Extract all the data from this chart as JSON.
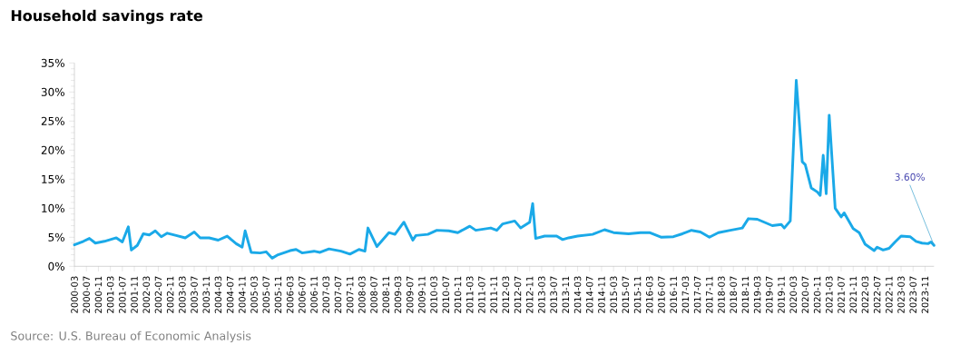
{
  "chart_data": {
    "type": "line",
    "title": "Household savings rate",
    "x": [
      "2000-03",
      "2000-06",
      "2000-08",
      "2000-10",
      "2001-01",
      "2001-05",
      "2001-07",
      "2001-09",
      "2001-10",
      "2001-12",
      "2002-02",
      "2002-04",
      "2002-06",
      "2002-08",
      "2002-10",
      "2003-01",
      "2003-04",
      "2003-07",
      "2003-09",
      "2003-12",
      "2004-03",
      "2004-06",
      "2004-09",
      "2004-11",
      "2004-12",
      "2005-02",
      "2005-05",
      "2005-07",
      "2005-09",
      "2005-11",
      "2006-03",
      "2006-05",
      "2006-07",
      "2006-11",
      "2007-01",
      "2007-04",
      "2007-08",
      "2007-11",
      "2008-02",
      "2008-04",
      "2008-05",
      "2008-08",
      "2008-12",
      "2009-02",
      "2009-05",
      "2009-08",
      "2009-09",
      "2010-01",
      "2010-04",
      "2010-08",
      "2010-11",
      "2011-03",
      "2011-05",
      "2011-10",
      "2011-12",
      "2012-02",
      "2012-06",
      "2012-08",
      "2012-11",
      "2012-12",
      "2013-01",
      "2013-04",
      "2013-08",
      "2013-10",
      "2013-12",
      "2014-03",
      "2014-08",
      "2014-12",
      "2015-03",
      "2015-08",
      "2015-12",
      "2016-03",
      "2016-07",
      "2016-11",
      "2017-02",
      "2017-05",
      "2017-08",
      "2017-11",
      "2018-02",
      "2018-06",
      "2018-10",
      "2018-12",
      "2019-03",
      "2019-08",
      "2019-11",
      "2019-12",
      "2020-02",
      "2020-04",
      "2020-06",
      "2020-07",
      "2020-09",
      "2020-11",
      "2020-12",
      "2021-01",
      "2021-02",
      "2021-03",
      "2021-05",
      "2021-07",
      "2021-08",
      "2021-11",
      "2022-01",
      "2022-03",
      "2022-06",
      "2022-07",
      "2022-09",
      "2022-11",
      "2023-01",
      "2023-03",
      "2023-06",
      "2023-08",
      "2023-10",
      "2023-12",
      "2024-01",
      "2024-02"
    ],
    "series": [
      {
        "color": "#1aa9e8",
        "values": [
          3.7,
          4.3,
          4.8,
          4.0,
          4.3,
          4.9,
          4.2,
          6.8,
          2.8,
          3.6,
          5.6,
          5.4,
          6.1,
          5.1,
          5.7,
          5.3,
          4.9,
          5.9,
          4.9,
          4.9,
          4.5,
          5.2,
          3.9,
          3.3,
          6.1,
          2.4,
          2.3,
          2.5,
          1.4,
          2.0,
          2.7,
          2.9,
          2.3,
          2.6,
          2.4,
          3.0,
          2.6,
          2.1,
          2.9,
          2.6,
          6.6,
          3.4,
          5.8,
          5.5,
          7.6,
          4.5,
          5.3,
          5.5,
          6.2,
          6.1,
          5.8,
          6.9,
          6.2,
          6.6,
          6.2,
          7.3,
          7.8,
          6.6,
          7.6,
          10.8,
          4.8,
          5.2,
          5.2,
          4.6,
          4.9,
          5.2,
          5.5,
          6.3,
          5.8,
          5.6,
          5.8,
          5.8,
          5.0,
          5.1,
          5.6,
          6.2,
          5.9,
          5.0,
          5.8,
          6.2,
          6.6,
          8.2,
          8.1,
          7.0,
          7.2,
          6.6,
          7.8,
          32.0,
          18.0,
          17.5,
          13.5,
          12.8,
          12.2,
          19.1,
          12.5,
          26.0,
          10.0,
          8.5,
          9.2,
          6.5,
          5.8,
          3.8,
          2.7,
          3.3,
          2.8,
          3.1,
          4.2,
          5.2,
          5.1,
          4.3,
          4.0,
          3.9,
          4.2,
          3.6
        ]
      }
    ],
    "xlim": [
      "2000-03",
      "2024-02"
    ],
    "xticks": [
      "2000-03",
      "2000-07",
      "2000-11",
      "2001-03",
      "2001-07",
      "2001-11",
      "2002-03",
      "2002-07",
      "2002-11",
      "2003-03",
      "2003-07",
      "2003-11",
      "2004-03",
      "2004-07",
      "2004-11",
      "2005-03",
      "2005-07",
      "2005-11",
      "2006-03",
      "2006-07",
      "2006-11",
      "2007-03",
      "2007-07",
      "2007-11",
      "2008-03",
      "2008-07",
      "2008-11",
      "2009-03",
      "2009-07",
      "2009-11",
      "2010-03",
      "2010-07",
      "2010-11",
      "2011-03",
      "2011-07",
      "2011-11",
      "2012-03",
      "2012-07",
      "2012-11",
      "2013-03",
      "2013-07",
      "2013-11",
      "2014-03",
      "2014-07",
      "2014-11",
      "2015-03",
      "2015-07",
      "2015-11",
      "2016-03",
      "2016-07",
      "2016-11",
      "2017-03",
      "2017-07",
      "2017-11",
      "2018-03",
      "2018-07",
      "2018-11",
      "2019-03",
      "2019-07",
      "2019-11",
      "2020-03",
      "2020-07",
      "2020-11",
      "2021-03",
      "2021-07",
      "2021-11",
      "2022-03",
      "2022-07",
      "2022-11",
      "2023-03",
      "2023-07",
      "2023-11"
    ],
    "ylim": [
      0,
      35
    ],
    "yticks": [
      {
        "value": 0,
        "label": "0%"
      },
      {
        "value": 5,
        "label": "5%"
      },
      {
        "value": 10,
        "label": "10%"
      },
      {
        "value": 15,
        "label": "15%"
      },
      {
        "value": 20,
        "label": "20%"
      },
      {
        "value": 25,
        "label": "25%"
      },
      {
        "value": 30,
        "label": "30%"
      },
      {
        "value": 35,
        "label": "35%"
      }
    ],
    "annotations": [
      {
        "text": "3.60%",
        "x": "2024-02",
        "y": 3.6
      },
      "Source: U.S. Bureau of Economic Analysis"
    ]
  }
}
